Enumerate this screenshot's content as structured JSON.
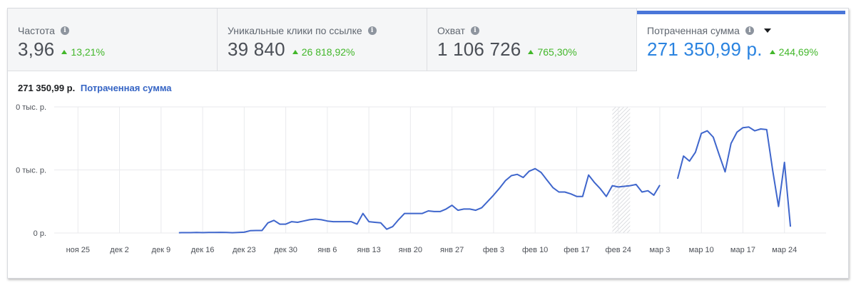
{
  "metrics": [
    {
      "title": "Частота",
      "value": "3,96",
      "change": "13,21%"
    },
    {
      "title": "Уникальные клики по ссылке",
      "value": "39 840",
      "change": "26 818,92%"
    },
    {
      "title": "Охват",
      "value": "1 106 726",
      "change": "765,30%"
    },
    {
      "title": "Потраченная сумма",
      "value": "271 350,99 р.",
      "change": "244,69%"
    }
  ],
  "chart_header": {
    "value": "271 350,99 р.",
    "label": "Потраченная сумма"
  },
  "colors": {
    "accent": "#2a83e0",
    "line": "#3f66cc",
    "positive": "#42b72a"
  },
  "chart_data": {
    "type": "line",
    "title": "",
    "xlabel": "",
    "ylabel": "",
    "y_tick_labels": [
      "0 тыс. р.",
      "0 тыс. р.",
      "0 р."
    ],
    "x_tick_labels": [
      "ноя 25",
      "дек 2",
      "дек 9",
      "дек 16",
      "дек 23",
      "дек 30",
      "янв 6",
      "янв 13",
      "янв 20",
      "янв 27",
      "фев 3",
      "фев 10",
      "фев 17",
      "фев 24",
      "мар 3",
      "мар 10",
      "мар 17",
      "мар 24"
    ],
    "x_unit": "days since ноя 25",
    "grid": true,
    "highlight_range": [
      90,
      93
    ],
    "series": [
      {
        "name": "Потраченная сумма",
        "segments": [
          [
            [
              17,
              0.2
            ],
            [
              18,
              0.3
            ],
            [
              19,
              0.3
            ],
            [
              20,
              0.4
            ],
            [
              21,
              0.3
            ],
            [
              22,
              0.4
            ],
            [
              23,
              0.4
            ],
            [
              24,
              0.5
            ],
            [
              25,
              0.4
            ],
            [
              26,
              0.2
            ],
            [
              27,
              0.4
            ],
            [
              28,
              0.6
            ],
            [
              29,
              1.8
            ],
            [
              30,
              2.0
            ],
            [
              31,
              2.0
            ],
            [
              32,
              8.0
            ],
            [
              33,
              10.0
            ],
            [
              34,
              7.0
            ],
            [
              35,
              7.0
            ],
            [
              36,
              9.0
            ],
            [
              37,
              8.5
            ],
            [
              38,
              9.5
            ],
            [
              39,
              10.5
            ],
            [
              40,
              11.0
            ],
            [
              41,
              10.5
            ],
            [
              42,
              9.5
            ],
            [
              43,
              9.0
            ],
            [
              44,
              9.0
            ],
            [
              45,
              9.0
            ],
            [
              46,
              9.0
            ],
            [
              47,
              7.0
            ],
            [
              48,
              15.5
            ],
            [
              49,
              9.0
            ],
            [
              50,
              8.5
            ],
            [
              51,
              8.0
            ],
            [
              52,
              3.0
            ],
            [
              53,
              5.0
            ],
            [
              54,
              10.5
            ],
            [
              55,
              15.5
            ],
            [
              56,
              15.5
            ],
            [
              57,
              15.5
            ],
            [
              58,
              15.5
            ],
            [
              59,
              17.5
            ],
            [
              60,
              17.0
            ],
            [
              61,
              17.0
            ],
            [
              62,
              19.0
            ],
            [
              63,
              22.0
            ],
            [
              64,
              18.0
            ],
            [
              65,
              19.0
            ],
            [
              66,
              19.0
            ],
            [
              67,
              18.0
            ],
            [
              68,
              20.0
            ],
            [
              69,
              25.0
            ],
            [
              70,
              30.0
            ],
            [
              71,
              35.5
            ],
            [
              72,
              41.5
            ],
            [
              73,
              45.5
            ],
            [
              74,
              46.5
            ],
            [
              75,
              44.0
            ],
            [
              76,
              49.0
            ],
            [
              77,
              51.0
            ],
            [
              78,
              48.0
            ],
            [
              79,
              42.0
            ],
            [
              80,
              36.0
            ],
            [
              81,
              32.5
            ],
            [
              82,
              32.5
            ],
            [
              83,
              31.0
            ],
            [
              84,
              29.0
            ],
            [
              85,
              29.0
            ],
            [
              86,
              46.0
            ],
            [
              87,
              40.0
            ],
            [
              88,
              35.0
            ],
            [
              89,
              29.0
            ],
            [
              90,
              37.5
            ],
            [
              91,
              36.5
            ],
            [
              92,
              37.0
            ],
            [
              93,
              37.5
            ],
            [
              94,
              38.5
            ],
            [
              95,
              32.5
            ],
            [
              96,
              33.5
            ],
            [
              97,
              30.0
            ],
            [
              98,
              38.0
            ]
          ],
          [
            [
              101,
              43.0
            ],
            [
              102,
              61.0
            ],
            [
              103,
              57.0
            ],
            [
              104,
              64.0
            ],
            [
              105,
              79.0
            ],
            [
              106,
              81.0
            ],
            [
              107,
              76.0
            ],
            [
              108,
              62.0
            ],
            [
              109,
              48.5
            ],
            [
              110,
              71.0
            ],
            [
              111,
              80.0
            ],
            [
              112,
              83.5
            ],
            [
              113,
              84.0
            ],
            [
              114,
              81.0
            ],
            [
              115,
              82.5
            ],
            [
              116,
              82.0
            ],
            [
              117,
              50.0
            ],
            [
              118,
              21.0
            ],
            [
              119,
              56.0
            ],
            [
              120,
              5.0
            ]
          ]
        ]
      }
    ],
    "ylim": [
      0,
      100
    ],
    "xlim": [
      -4,
      126
    ]
  }
}
